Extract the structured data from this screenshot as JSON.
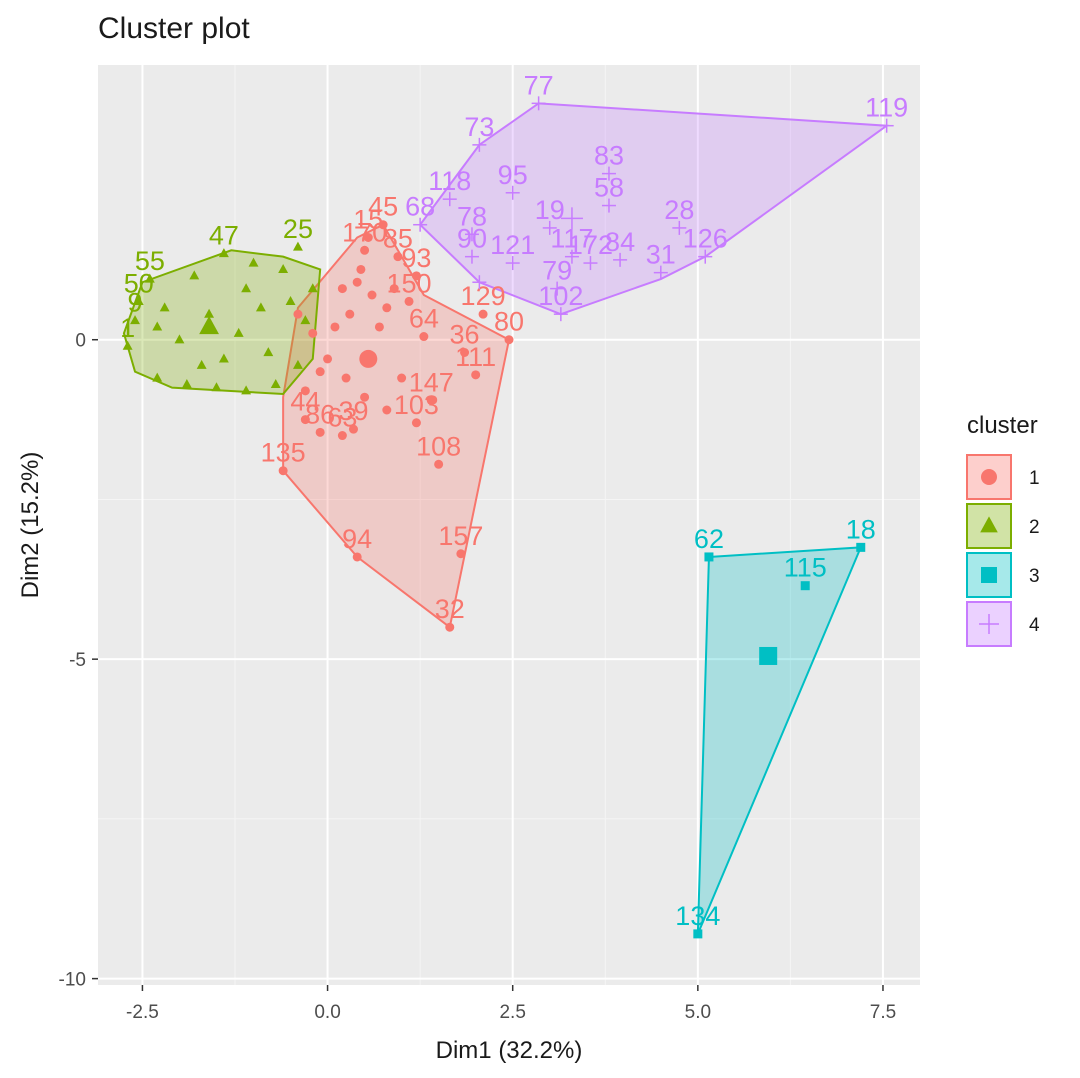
{
  "title": "Cluster plot",
  "chart_data": {
    "type": "scatter",
    "title": "Cluster plot",
    "xlabel": "Dim1 (32.2%)",
    "ylabel": "Dim2 (15.2%)",
    "xlim": [
      -3.1,
      8.0
    ],
    "ylim": [
      -10.1,
      4.3
    ],
    "xticks": [
      -2.5,
      0.0,
      2.5,
      5.0,
      7.5
    ],
    "xtick_labels": [
      "-2.5",
      "0.0",
      "2.5",
      "5.0",
      "7.5"
    ],
    "yticks": [
      -10,
      -5,
      0
    ],
    "ytick_labels": [
      "-10",
      "-5",
      "0"
    ],
    "grid": true,
    "legend": {
      "title": "cluster",
      "position": "right",
      "entries": [
        "1",
        "2",
        "3",
        "4"
      ]
    },
    "series": [
      {
        "name": "1",
        "color": "#F8766D",
        "marker": "circle",
        "hull": [
          [
            -0.6,
            -2.05
          ],
          [
            0.4,
            -3.4
          ],
          [
            1.65,
            -4.5
          ],
          [
            2.45,
            0.0
          ],
          [
            1.3,
            0.7
          ],
          [
            0.75,
            1.8
          ],
          [
            0.4,
            1.6
          ],
          [
            -0.4,
            0.5
          ],
          [
            -0.6,
            -0.9
          ]
        ],
        "centroid": [
          0.55,
          -0.3
        ],
        "points": [
          {
            "x": -0.6,
            "y": -2.05,
            "label": "135"
          },
          {
            "x": 0.4,
            "y": -3.4,
            "label": "94"
          },
          {
            "x": 1.65,
            "y": -4.5,
            "label": "32"
          },
          {
            "x": 1.8,
            "y": -3.35,
            "label": "157"
          },
          {
            "x": 1.5,
            "y": -1.95,
            "label": "108"
          },
          {
            "x": 1.2,
            "y": -1.3,
            "label": "103"
          },
          {
            "x": 1.4,
            "y": -0.95,
            "label": "147"
          },
          {
            "x": 2.0,
            "y": -0.55,
            "label": "111"
          },
          {
            "x": 1.85,
            "y": -0.2,
            "label": "36"
          },
          {
            "x": 1.3,
            "y": 0.05,
            "label": "64"
          },
          {
            "x": 2.45,
            "y": 0.0,
            "label": "80"
          },
          {
            "x": 2.1,
            "y": 0.4,
            "label": "129"
          },
          {
            "x": 0.35,
            "y": -1.4,
            "label": "39"
          },
          {
            "x": 0.2,
            "y": -1.5,
            "label": "63"
          },
          {
            "x": -0.1,
            "y": -1.45,
            "label": "86"
          },
          {
            "x": -0.3,
            "y": -1.25,
            "label": "44"
          },
          {
            "x": 0.75,
            "y": 1.8,
            "label": "45"
          },
          {
            "x": 0.55,
            "y": 1.6,
            "label": "15"
          },
          {
            "x": 0.95,
            "y": 1.3,
            "label": "85"
          },
          {
            "x": 1.2,
            "y": 1.0,
            "label": "93"
          },
          {
            "x": 0.5,
            "y": 1.4,
            "label": "170"
          },
          {
            "x": 1.1,
            "y": 0.6,
            "label": "150"
          },
          {
            "x": 0.2,
            "y": 0.8,
            "label": ""
          },
          {
            "x": 0.4,
            "y": 0.9,
            "label": ""
          },
          {
            "x": 0.6,
            "y": 0.7,
            "label": ""
          },
          {
            "x": 0.8,
            "y": 0.5,
            "label": ""
          },
          {
            "x": 0.3,
            "y": 0.4,
            "label": ""
          },
          {
            "x": 0.1,
            "y": 0.2,
            "label": ""
          },
          {
            "x": -0.2,
            "y": 0.1,
            "label": ""
          },
          {
            "x": -0.4,
            "y": 0.4,
            "label": ""
          },
          {
            "x": 0.0,
            "y": -0.3,
            "label": ""
          },
          {
            "x": 0.25,
            "y": -0.6,
            "label": ""
          },
          {
            "x": 0.5,
            "y": -0.9,
            "label": ""
          },
          {
            "x": 0.8,
            "y": -1.1,
            "label": ""
          },
          {
            "x": 1.0,
            "y": -0.6,
            "label": ""
          },
          {
            "x": 0.7,
            "y": 0.2,
            "label": ""
          },
          {
            "x": 0.9,
            "y": 0.8,
            "label": ""
          },
          {
            "x": 0.45,
            "y": 1.1,
            "label": ""
          },
          {
            "x": -0.3,
            "y": -0.8,
            "label": ""
          },
          {
            "x": -0.1,
            "y": -0.5,
            "label": ""
          }
        ]
      },
      {
        "name": "2",
        "color": "#7CAE00",
        "marker": "triangle",
        "hull": [
          [
            -2.75,
            0.1
          ],
          [
            -2.6,
            -0.5
          ],
          [
            -2.1,
            -0.75
          ],
          [
            -0.6,
            -0.85
          ],
          [
            -0.2,
            -0.3
          ],
          [
            -0.1,
            1.1
          ],
          [
            -0.6,
            1.3
          ],
          [
            -1.3,
            1.4
          ],
          [
            -2.5,
            0.9
          ]
        ],
        "centroid": [
          -1.6,
          0.2
        ],
        "points": [
          {
            "x": -2.4,
            "y": 0.95,
            "label": "55"
          },
          {
            "x": -2.55,
            "y": 0.6,
            "label": "50"
          },
          {
            "x": -1.4,
            "y": 1.35,
            "label": "47"
          },
          {
            "x": -0.4,
            "y": 1.45,
            "label": "25"
          },
          {
            "x": -2.6,
            "y": 0.3,
            "label": "9"
          },
          {
            "x": -2.7,
            "y": -0.1,
            "label": "1"
          },
          {
            "x": -2.3,
            "y": -0.6,
            "label": ""
          },
          {
            "x": -1.9,
            "y": -0.7,
            "label": ""
          },
          {
            "x": -1.5,
            "y": -0.75,
            "label": ""
          },
          {
            "x": -1.1,
            "y": -0.8,
            "label": ""
          },
          {
            "x": -0.7,
            "y": -0.7,
            "label": ""
          },
          {
            "x": -0.4,
            "y": -0.4,
            "label": ""
          },
          {
            "x": -0.3,
            "y": 0.3,
            "label": ""
          },
          {
            "x": -0.2,
            "y": 0.8,
            "label": ""
          },
          {
            "x": -0.6,
            "y": 1.1,
            "label": ""
          },
          {
            "x": -1.0,
            "y": 1.2,
            "label": ""
          },
          {
            "x": -1.8,
            "y": 1.0,
            "label": ""
          },
          {
            "x": -2.2,
            "y": 0.5,
            "label": ""
          },
          {
            "x": -2.0,
            "y": 0.0,
            "label": ""
          },
          {
            "x": -1.6,
            "y": 0.4,
            "label": ""
          },
          {
            "x": -1.2,
            "y": 0.1,
            "label": ""
          },
          {
            "x": -0.9,
            "y": 0.5,
            "label": ""
          },
          {
            "x": -1.4,
            "y": -0.3,
            "label": ""
          },
          {
            "x": -0.8,
            "y": -0.2,
            "label": ""
          },
          {
            "x": -2.3,
            "y": 0.2,
            "label": ""
          },
          {
            "x": -1.7,
            "y": -0.4,
            "label": ""
          },
          {
            "x": -1.1,
            "y": 0.8,
            "label": ""
          },
          {
            "x": -0.5,
            "y": 0.6,
            "label": ""
          }
        ]
      },
      {
        "name": "3",
        "color": "#00BFC4",
        "marker": "square",
        "hull": [
          [
            5.15,
            -3.4
          ],
          [
            7.2,
            -3.25
          ],
          [
            5.0,
            -9.3
          ]
        ],
        "centroid": [
          5.95,
          -4.95
        ],
        "points": [
          {
            "x": 5.15,
            "y": -3.4,
            "label": "62"
          },
          {
            "x": 7.2,
            "y": -3.25,
            "label": "18"
          },
          {
            "x": 6.45,
            "y": -3.85,
            "label": "115"
          },
          {
            "x": 5.0,
            "y": -9.3,
            "label": "134"
          }
        ]
      },
      {
        "name": "4",
        "color": "#C77CFF",
        "marker": "cross",
        "hull": [
          [
            1.25,
            1.8
          ],
          [
            2.05,
            3.05
          ],
          [
            2.85,
            3.7
          ],
          [
            7.55,
            3.35
          ],
          [
            5.1,
            1.3
          ],
          [
            4.5,
            0.95
          ],
          [
            3.15,
            0.4
          ],
          [
            2.05,
            0.9
          ]
        ],
        "centroid": [
          3.3,
          1.9
        ],
        "points": [
          {
            "x": 2.85,
            "y": 3.7,
            "label": "77"
          },
          {
            "x": 7.55,
            "y": 3.35,
            "label": "119"
          },
          {
            "x": 2.05,
            "y": 3.05,
            "label": "73"
          },
          {
            "x": 3.8,
            "y": 2.6,
            "label": "83"
          },
          {
            "x": 1.65,
            "y": 2.2,
            "label": "118"
          },
          {
            "x": 2.5,
            "y": 2.3,
            "label": "95"
          },
          {
            "x": 3.8,
            "y": 2.1,
            "label": "58"
          },
          {
            "x": 1.25,
            "y": 1.8,
            "label": "68"
          },
          {
            "x": 1.95,
            "y": 1.65,
            "label": "78"
          },
          {
            "x": 3.0,
            "y": 1.75,
            "label": "19"
          },
          {
            "x": 4.75,
            "y": 1.75,
            "label": "28"
          },
          {
            "x": 1.95,
            "y": 1.3,
            "label": "90"
          },
          {
            "x": 2.5,
            "y": 1.2,
            "label": "121"
          },
          {
            "x": 3.3,
            "y": 1.3,
            "label": "117"
          },
          {
            "x": 3.55,
            "y": 1.2,
            "label": "172"
          },
          {
            "x": 3.95,
            "y": 1.25,
            "label": "84"
          },
          {
            "x": 4.5,
            "y": 1.05,
            "label": "31"
          },
          {
            "x": 5.1,
            "y": 1.3,
            "label": "126"
          },
          {
            "x": 3.1,
            "y": 0.8,
            "label": "79"
          },
          {
            "x": 3.15,
            "y": 0.4,
            "label": "102"
          },
          {
            "x": 2.05,
            "y": 0.9,
            "label": ""
          }
        ]
      }
    ]
  }
}
